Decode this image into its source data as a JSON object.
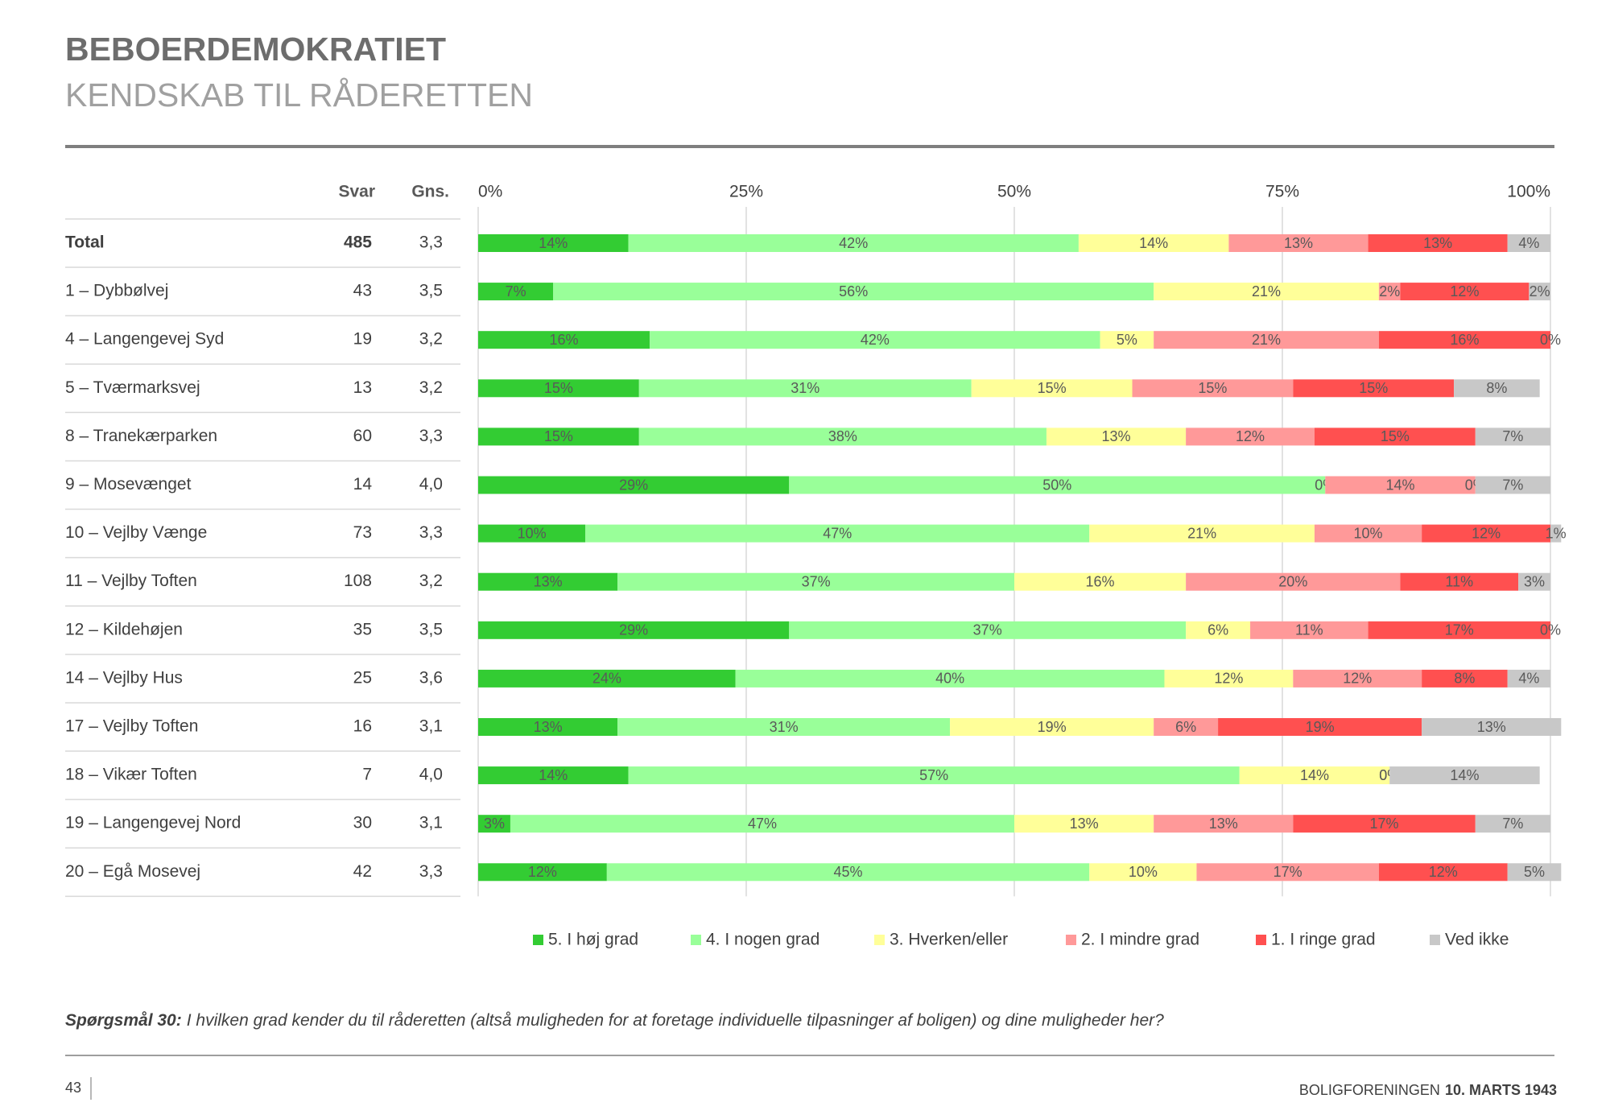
{
  "header": {
    "title": "BEBOERDEMOKRATIET",
    "subtitle": "KENDSKAB TIL RÅDERETTEN"
  },
  "chart_data": {
    "type": "bar",
    "orientation": "horizontal",
    "stacked": true,
    "categories": [
      "Total",
      "1 – Dybbølvej",
      "4 – Langengevej Syd",
      "5 – Tværmarksvej",
      "8 – Tranekærparken",
      "9 – Mosevænget",
      "10 – Vejlby Vænge",
      "11 – Vejlby Toften",
      "12 – Kildehøjen",
      "14 – Vejlby Hus",
      "17 – Vejlby Toften",
      "18 – Vikær Toften",
      "19 – Langengevej Nord",
      "20 – Egå Mosevej"
    ],
    "columns": [
      {
        "name": "Svar",
        "values": [
          485,
          43,
          19,
          13,
          60,
          14,
          73,
          108,
          35,
          25,
          16,
          7,
          30,
          42
        ]
      },
      {
        "name": "Gns.",
        "values": [
          "3,3",
          "3,5",
          "3,2",
          "3,2",
          "3,3",
          "4,0",
          "3,3",
          "3,2",
          "3,5",
          "3,6",
          "3,1",
          "4,0",
          "3,1",
          "3,3"
        ]
      }
    ],
    "series": [
      {
        "name": "5. I høj grad",
        "color": "#33cc33",
        "values": [
          14,
          7,
          16,
          15,
          15,
          29,
          10,
          13,
          29,
          24,
          13,
          14,
          3,
          12
        ],
        "value_labels": [
          "14%",
          "7%",
          "16%",
          "15%",
          "15%",
          "29%",
          "10%",
          "13%",
          "29%",
          "24%",
          "13%",
          "14%",
          "3%",
          "12%"
        ]
      },
      {
        "name": "4. I nogen grad",
        "color": "#99ff99",
        "values": [
          42,
          56,
          42,
          31,
          38,
          50,
          47,
          37,
          37,
          40,
          31,
          57,
          47,
          45
        ],
        "value_labels": [
          "42%",
          "56%",
          "42%",
          "31%",
          "38%",
          "50%",
          "47%",
          "37%",
          "37%",
          "40%",
          "31%",
          "57%",
          "47%",
          "45%"
        ]
      },
      {
        "name": "3. Hverken/eller",
        "color": "#ffff99",
        "values": [
          14,
          21,
          5,
          15,
          13,
          0,
          21,
          16,
          6,
          12,
          19,
          14,
          13,
          10
        ],
        "value_labels": [
          "14%",
          "21%",
          "5%",
          "15%",
          "13%",
          "0%",
          "21%",
          "16%",
          "6%",
          "12%",
          "19%",
          "14%",
          "13%",
          "10%"
        ]
      },
      {
        "name": "2. I mindre grad",
        "color": "#ff9999",
        "values": [
          13,
          2,
          21,
          15,
          12,
          14,
          10,
          20,
          11,
          12,
          6,
          0,
          13,
          17
        ],
        "value_labels": [
          "13%",
          "2%",
          "21%",
          "15%",
          "12%",
          "14%",
          "10%",
          "20%",
          "11%",
          "12%",
          "6%",
          "0%",
          "13%",
          "17%"
        ]
      },
      {
        "name": "1. I ringe grad",
        "color": "#ff5050",
        "values": [
          13,
          12,
          16,
          15,
          15,
          0,
          12,
          11,
          17,
          8,
          19,
          0,
          17,
          12
        ],
        "value_labels": [
          "13%",
          "12%",
          "16%",
          "15%",
          "15%",
          "0%",
          "12%",
          "11%",
          "17%",
          "8%",
          "19%",
          "0%",
          "17%",
          "12%"
        ]
      },
      {
        "name": "Ved ikke",
        "color": "#c8c8c8",
        "values": [
          4,
          2,
          0,
          8,
          7,
          7,
          1,
          3,
          0,
          4,
          13,
          14,
          7,
          5
        ],
        "value_labels": [
          "4%",
          "2%",
          "0%",
          "8%",
          "7%",
          "7%",
          "1%",
          "3%",
          "0%",
          "4%",
          "13%",
          "14%",
          "7%",
          "5%"
        ]
      }
    ],
    "xlim": [
      0,
      100
    ],
    "xticks": [
      {
        "value": 0,
        "label": "0%"
      },
      {
        "value": 25,
        "label": "25%"
      },
      {
        "value": 50,
        "label": "50%"
      },
      {
        "value": 75,
        "label": "75%"
      },
      {
        "value": 100,
        "label": "100%"
      }
    ],
    "grid": true,
    "legend": "bottom"
  },
  "question": {
    "label": "Spørgsmål 30:",
    "text": "I hvilken grad kender du til råderetten (altså muligheden for at foretage individuelle tilpasninger af boligen) og dine muligheder her?"
  },
  "footer": {
    "page": 43,
    "org": "BOLIGFORENINGEN",
    "date": "10. MARTS 1943"
  }
}
